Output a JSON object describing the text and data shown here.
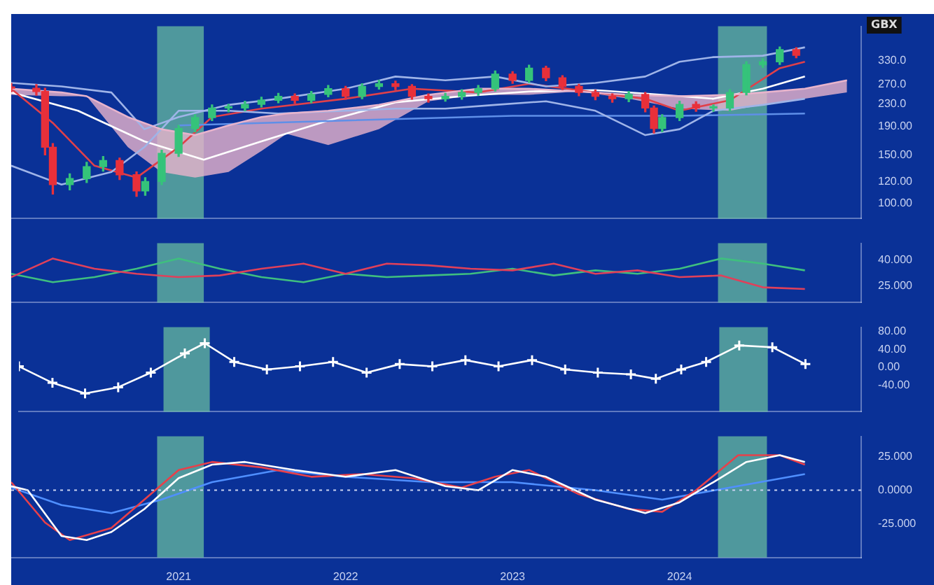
{
  "chart_data": [
    {
      "type": "candlestick",
      "log": true,
      "legend": false,
      "tick_labels": "y",
      "annotations": [
        "GBX"
      ],
      "x": [
        "2020-01-01",
        "2020-02-25",
        "2020-03-15",
        "2020-04-01",
        "2020-05-08",
        "2020-06-14",
        "2020-07-20",
        "2020-08-25",
        "2020-10-01",
        "2020-10-20",
        "2020-11-25",
        "2021-01-01",
        "2021-02-06",
        "2021-03-15",
        "2021-04-20",
        "2021-05-26",
        "2021-07-01",
        "2021-08-07",
        "2021-09-12",
        "2021-10-18",
        "2021-11-24",
        "2022-01-01",
        "2022-02-06",
        "2022-03-15",
        "2022-04-20",
        "2022-05-26",
        "2022-07-01",
        "2022-08-07",
        "2022-09-12",
        "2022-10-18",
        "2022-11-24",
        "2023-01-01",
        "2023-02-06",
        "2023-03-15",
        "2023-04-20",
        "2023-05-26",
        "2023-07-01",
        "2023-08-07",
        "2023-09-12",
        "2023-10-18",
        "2023-11-06",
        "2023-11-24",
        "2024-01-01",
        "2024-02-06",
        "2024-03-15",
        "2024-04-20",
        "2024-05-26",
        "2024-07-01",
        "2024-08-07",
        "2024-09-12"
      ],
      "ohlc": [
        [
          265,
          273,
          254,
          262
        ],
        [
          262,
          270,
          247,
          255
        ],
        [
          255,
          262,
          150,
          160
        ],
        [
          160,
          165,
          108,
          117
        ],
        [
          117,
          128,
          112,
          123
        ],
        [
          123,
          141,
          119,
          136
        ],
        [
          136,
          148,
          131,
          143
        ],
        [
          143,
          146,
          122,
          127
        ],
        [
          127,
          130,
          106,
          111
        ],
        [
          111,
          124,
          107,
          120
        ],
        [
          120,
          156,
          117,
          152
        ],
        [
          152,
          192,
          148,
          187
        ],
        [
          187,
          210,
          182,
          205
        ],
        [
          205,
          228,
          200,
          222
        ],
        [
          222,
          229,
          215,
          222
        ],
        [
          222,
          235,
          217,
          229
        ],
        [
          229,
          243,
          224,
          237
        ],
        [
          237,
          251,
          232,
          245
        ],
        [
          245,
          250,
          231,
          237
        ],
        [
          237,
          255,
          232,
          249
        ],
        [
          249,
          268,
          244,
          261
        ],
        [
          261,
          266,
          239,
          245
        ],
        [
          245,
          272,
          240,
          266
        ],
        [
          266,
          280,
          260,
          272
        ],
        [
          272,
          278,
          259,
          266
        ],
        [
          266,
          270,
          239,
          245
        ],
        [
          245,
          250,
          233,
          240
        ],
        [
          240,
          251,
          235,
          245
        ],
        [
          245,
          259,
          239,
          253
        ],
        [
          253,
          268,
          247,
          261
        ],
        [
          261,
          303,
          256,
          295
        ],
        [
          295,
          301,
          273,
          280
        ],
        [
          280,
          318,
          275,
          310
        ],
        [
          310,
          315,
          279,
          286
        ],
        [
          286,
          291,
          259,
          266
        ],
        [
          266,
          271,
          246,
          253
        ],
        [
          253,
          258,
          238,
          245
        ],
        [
          245,
          250,
          233,
          240
        ],
        [
          240,
          255,
          234,
          249
        ],
        [
          249,
          253,
          215,
          222
        ],
        [
          222,
          226,
          180,
          187
        ],
        [
          187,
          210,
          182,
          205
        ],
        [
          205,
          235,
          200,
          229
        ],
        [
          229,
          234,
          216,
          222
        ],
        [
          222,
          228,
          216,
          222
        ],
        [
          222,
          259,
          217,
          253
        ],
        [
          253,
          327,
          248,
          319
        ],
        [
          319,
          335,
          312,
          327
        ],
        [
          327,
          370,
          320,
          362
        ],
        [
          362,
          368,
          338,
          345
        ]
      ],
      "colors": [
        "#e8303a",
        "#e8303a",
        "#e8303a",
        "#e8303a",
        "#35c37a",
        "#35c37a",
        "#35c37a",
        "#e8303a",
        "#e8303a",
        "#35c37a",
        "#35c37a",
        "#35c37a",
        "#35c37a",
        "#35c37a",
        "#35c37a",
        "#35c37a",
        "#35c37a",
        "#35c37a",
        "#e8303a",
        "#35c37a",
        "#35c37a",
        "#e8303a",
        "#35c37a",
        "#35c37a",
        "#e8303a",
        "#e8303a",
        "#e8303a",
        "#35c37a",
        "#35c37a",
        "#35c37a",
        "#35c37a",
        "#e8303a",
        "#35c37a",
        "#e8303a",
        "#e8303a",
        "#e8303a",
        "#e8303a",
        "#e8303a",
        "#35c37a",
        "#e8303a",
        "#e8303a",
        "#35c37a",
        "#35c37a",
        "#e8303a",
        "#35c37a",
        "#35c37a",
        "#35c37a",
        "#35c37a",
        "#35c37a",
        "#e8303a"
      ],
      "series": [
        {
          "type": "line",
          "color": "#e8b4cc",
          "x": [
            "2020-01-01",
            "2020-04-20",
            "2020-06-14",
            "2020-09-12",
            "2020-11-24",
            "2021-02-06",
            "2021-04-20",
            "2021-07-01",
            "2021-08-25",
            "2021-11-24",
            "2022-03-15",
            "2022-07-01",
            "2022-10-18",
            "2023-02-06",
            "2023-05-26",
            "2023-09-12",
            "2024-01-01",
            "2024-04-20",
            "2024-07-01",
            "2024-10-01",
            "2025-01-01"
          ],
          "values": [
            261,
            253,
            245,
            206,
            186,
            177,
            192,
            206,
            212,
            217,
            228,
            248,
            261,
            261,
            255,
            248,
            245,
            248,
            253,
            261,
            280
          ],
          "lower": [
            248,
            245,
            245,
            160,
            130,
            124,
            130,
            155,
            179,
            163,
            186,
            235,
            248,
            248,
            255,
            240,
            221,
            217,
            228,
            240,
            253
          ],
          "upper": [
            261,
            253,
            245,
            206,
            186,
            177,
            192,
            206,
            212,
            217,
            228,
            248,
            261,
            261,
            255,
            248,
            245,
            248,
            253,
            261,
            280
          ]
        },
        {
          "type": "line",
          "color": "#9fb4e8",
          "x": [
            "2020-01-01",
            "2020-04-20",
            "2020-08-07",
            "2020-10-18",
            "2021-01-01",
            "2021-04-20",
            "2021-08-07",
            "2022-01-01",
            "2022-04-20",
            "2022-08-07",
            "2022-11-24",
            "2023-03-15",
            "2023-07-01",
            "2023-10-18",
            "2024-01-01",
            "2024-03-15",
            "2024-07-01",
            "2024-10-01"
          ],
          "values": [
            274,
            266,
            253,
            186,
            206,
            228,
            240,
            261,
            289,
            280,
            289,
            266,
            274,
            289,
            327,
            340,
            344,
            369
          ]
        },
        {
          "type": "line",
          "color": "#9fb4e8",
          "x": [
            "2020-01-01",
            "2020-04-20",
            "2020-08-07",
            "2020-10-18",
            "2021-01-01",
            "2021-04-20",
            "2021-08-07",
            "2022-01-01",
            "2022-04-20",
            "2022-08-07",
            "2022-11-24",
            "2023-03-15",
            "2023-07-01",
            "2023-10-18",
            "2024-01-01",
            "2024-03-15",
            "2024-07-01",
            "2024-10-01"
          ],
          "values": [
            137,
            117,
            130,
            160,
            217,
            217,
            212,
            217,
            221,
            221,
            228,
            235,
            217,
            177,
            186,
            217,
            228,
            240
          ]
        },
        {
          "type": "line",
          "color": "#5f8fe8",
          "x": [
            "2021-01-01",
            "2022-01-01",
            "2023-01-01",
            "2024-01-01",
            "2024-10-01"
          ],
          "values": [
            192,
            200,
            208,
            208,
            212
          ]
        },
        {
          "type": "line",
          "color": "#e0404a",
          "x": [
            "2020-01-01",
            "2020-04-01",
            "2020-07-01",
            "2020-10-01",
            "2021-01-01",
            "2021-03-15",
            "2021-07-01",
            "2022-01-01",
            "2022-05-26",
            "2022-10-18",
            "2023-02-06",
            "2023-07-01",
            "2023-10-18",
            "2024-01-01",
            "2024-04-20",
            "2024-08-07",
            "2024-10-01"
          ],
          "values": [
            261,
            196,
            137,
            124,
            160,
            206,
            221,
            240,
            261,
            253,
            272,
            253,
            240,
            217,
            237,
            310,
            327
          ]
        },
        {
          "type": "line",
          "color": "#ffffff",
          "x": [
            "2020-01-01",
            "2020-05-26",
            "2020-10-18",
            "2021-02-25",
            "2021-07-01",
            "2021-11-24",
            "2022-04-20",
            "2022-09-12",
            "2023-02-06",
            "2023-07-01",
            "2023-11-24",
            "2024-03-15",
            "2024-07-01",
            "2024-10-01"
          ],
          "values": [
            253,
            217,
            168,
            144,
            168,
            200,
            233,
            245,
            255,
            258,
            248,
            240,
            261,
            289
          ]
        }
      ],
      "xlim": [
        "2020-01-01",
        "2025-02-01"
      ],
      "ylim": [
        88,
        440
      ],
      "yticks": [
        {
          "value": 330,
          "label": "330.0"
        },
        {
          "value": 270,
          "label": "270.0"
        },
        {
          "value": 230,
          "label": "230.0"
        },
        {
          "value": 190,
          "label": "190.00"
        },
        {
          "value": 150,
          "label": "150.00"
        },
        {
          "value": 120,
          "label": "120.00"
        },
        {
          "value": 100,
          "label": "100.00"
        }
      ],
      "bands": [
        {
          "axis": "x",
          "from": "2020-11-15",
          "to": "2021-02-25",
          "color": "#6cc4a0"
        },
        {
          "axis": "x",
          "from": "2024-03-25",
          "to": "2024-07-10",
          "color": "#6cc4a0"
        }
      ]
    },
    {
      "type": "line",
      "legend": false,
      "tick_labels": "y",
      "x": [
        "2020-01-01",
        "2020-04-01",
        "2020-07-01",
        "2020-10-01",
        "2021-01-01",
        "2021-04-01",
        "2021-07-01",
        "2021-10-01",
        "2022-01-01",
        "2022-04-01",
        "2022-07-01",
        "2022-10-01",
        "2023-01-01",
        "2023-04-01",
        "2023-07-01",
        "2023-10-01",
        "2024-01-01",
        "2024-04-01",
        "2024-07-01",
        "2024-10-01"
      ],
      "series": [
        {
          "color": "#e0405a",
          "values": [
            30,
            41,
            35,
            32,
            30,
            31,
            35,
            38,
            32,
            38,
            37,
            35,
            34,
            38,
            32,
            34,
            30,
            31,
            24,
            23
          ]
        },
        {
          "color": "#3fbf7f",
          "values": [
            32,
            27,
            30,
            35,
            41,
            35,
            30,
            27,
            32,
            30,
            31,
            32,
            35,
            31,
            34,
            32,
            35,
            41,
            38,
            34
          ]
        }
      ],
      "xlim": [
        "2020-01-01",
        "2025-02-01"
      ],
      "ylim": [
        15,
        50
      ],
      "yticks": [
        {
          "value": 40,
          "label": "40.000"
        },
        {
          "value": 25,
          "label": "25.000"
        }
      ],
      "bands": [
        {
          "axis": "x",
          "from": "2020-11-15",
          "to": "2021-02-25",
          "color": "#6cc4a0"
        },
        {
          "axis": "x",
          "from": "2024-03-25",
          "to": "2024-07-10",
          "color": "#6cc4a0"
        }
      ]
    },
    {
      "type": "line",
      "legend": false,
      "tick_labels": "y",
      "marker": "cross",
      "x": [
        "2020-01-01",
        "2020-03-15",
        "2020-05-26",
        "2020-08-07",
        "2020-10-18",
        "2021-01-01",
        "2021-02-14",
        "2021-04-20",
        "2021-07-01",
        "2021-09-12",
        "2021-11-24",
        "2022-02-06",
        "2022-04-20",
        "2022-07-01",
        "2022-09-12",
        "2022-11-24",
        "2023-02-06",
        "2023-04-20",
        "2023-07-01",
        "2023-09-12",
        "2023-11-06",
        "2024-01-01",
        "2024-02-25",
        "2024-05-08",
        "2024-07-20",
        "2024-10-01"
      ],
      "series": [
        {
          "color": "#ffffff",
          "values": [
            2,
            -35,
            -59,
            -45,
            -12,
            31,
            54,
            12,
            -5,
            2,
            12,
            -12,
            7,
            2,
            16,
            2,
            16,
            -5,
            -12,
            -16,
            -26,
            -5,
            12,
            49,
            45,
            7
          ]
        }
      ],
      "xlim": [
        "2020-01-01",
        "2025-02-01"
      ],
      "ylim": [
        -100,
        90
      ],
      "yticks": [
        {
          "value": 80,
          "label": "80.00"
        },
        {
          "value": 40,
          "label": "40.00"
        },
        {
          "value": 0,
          "label": "0.00"
        },
        {
          "value": -40,
          "label": "-40.00"
        }
      ],
      "bands": [
        {
          "axis": "x",
          "from": "2020-11-15",
          "to": "2021-02-25",
          "color": "#6cc4a0"
        },
        {
          "axis": "x",
          "from": "2024-03-25",
          "to": "2024-07-10",
          "color": "#6cc4a0"
        }
      ]
    },
    {
      "type": "line",
      "legend": false,
      "series": [
        {
          "color": "#ffffff",
          "x": [
            "2020-01-01",
            "2020-02-06",
            "2020-04-20",
            "2020-06-14",
            "2020-08-07",
            "2020-10-18",
            "2021-01-01",
            "2021-03-15",
            "2021-05-26",
            "2021-09-12",
            "2022-01-01",
            "2022-04-20",
            "2022-08-07",
            "2022-10-18",
            "2023-01-01",
            "2023-03-15",
            "2023-07-01",
            "2023-10-18",
            "2024-01-01",
            "2024-03-15",
            "2024-05-26",
            "2024-08-07",
            "2024-10-01"
          ],
          "values": [
            3,
            0,
            -34,
            -37,
            -31,
            -14,
            9,
            19,
            21,
            15,
            10,
            15,
            3,
            0,
            15,
            10,
            -7,
            -17,
            -9,
            6,
            21,
            26,
            21
          ]
        },
        {
          "color": "#e8404a",
          "x": [
            "2020-01-01",
            "2020-03-15",
            "2020-05-08",
            "2020-08-07",
            "2020-10-18",
            "2021-01-01",
            "2021-03-15",
            "2021-07-01",
            "2021-10-18",
            "2022-02-06",
            "2022-05-26",
            "2022-09-12",
            "2022-11-24",
            "2023-02-06",
            "2023-05-26",
            "2023-09-12",
            "2023-11-24",
            "2024-02-06",
            "2024-05-08",
            "2024-08-07",
            "2024-10-01"
          ],
          "values": [
            6,
            -24,
            -37,
            -28,
            -7,
            15,
            21,
            17,
            10,
            12,
            9,
            2,
            10,
            15,
            -3,
            -14,
            -16,
            0,
            26,
            26,
            19
          ]
        },
        {
          "color": "#4f8fff",
          "x": [
            "2020-01-01",
            "2020-04-20",
            "2020-08-07",
            "2020-11-24",
            "2021-03-15",
            "2021-08-07",
            "2022-01-01",
            "2022-07-01",
            "2023-01-01",
            "2023-07-01",
            "2023-11-24",
            "2024-04-20",
            "2024-10-01"
          ],
          "values": [
            2,
            -11,
            -17,
            -7,
            6,
            15,
            10,
            6,
            6,
            0,
            -7,
            2,
            12
          ]
        }
      ],
      "xlim": [
        "2020-01-01",
        "2025-02-01"
      ],
      "xticks": [
        {
          "value": "2021-01-01",
          "label": "2021"
        },
        {
          "value": "2022-01-01",
          "label": "2022"
        },
        {
          "value": "2023-01-01",
          "label": "2023"
        },
        {
          "value": "2024-01-01",
          "label": "2024"
        }
      ],
      "ylim": [
        -50,
        40
      ],
      "yticks": [
        {
          "value": 25,
          "label": "25.000"
        },
        {
          "value": 0,
          "label": "0.0000"
        },
        {
          "value": -25,
          "label": "-25.000"
        }
      ],
      "ref_lines": [
        {
          "axis": "y",
          "value": 0,
          "color": "#c8d2f0",
          "line_style": "dotted"
        }
      ],
      "bands": [
        {
          "axis": "x",
          "from": "2020-11-15",
          "to": "2021-02-25",
          "color": "#6cc4a0"
        },
        {
          "axis": "x",
          "from": "2024-03-25",
          "to": "2024-07-10",
          "color": "#6cc4a0"
        }
      ]
    }
  ]
}
